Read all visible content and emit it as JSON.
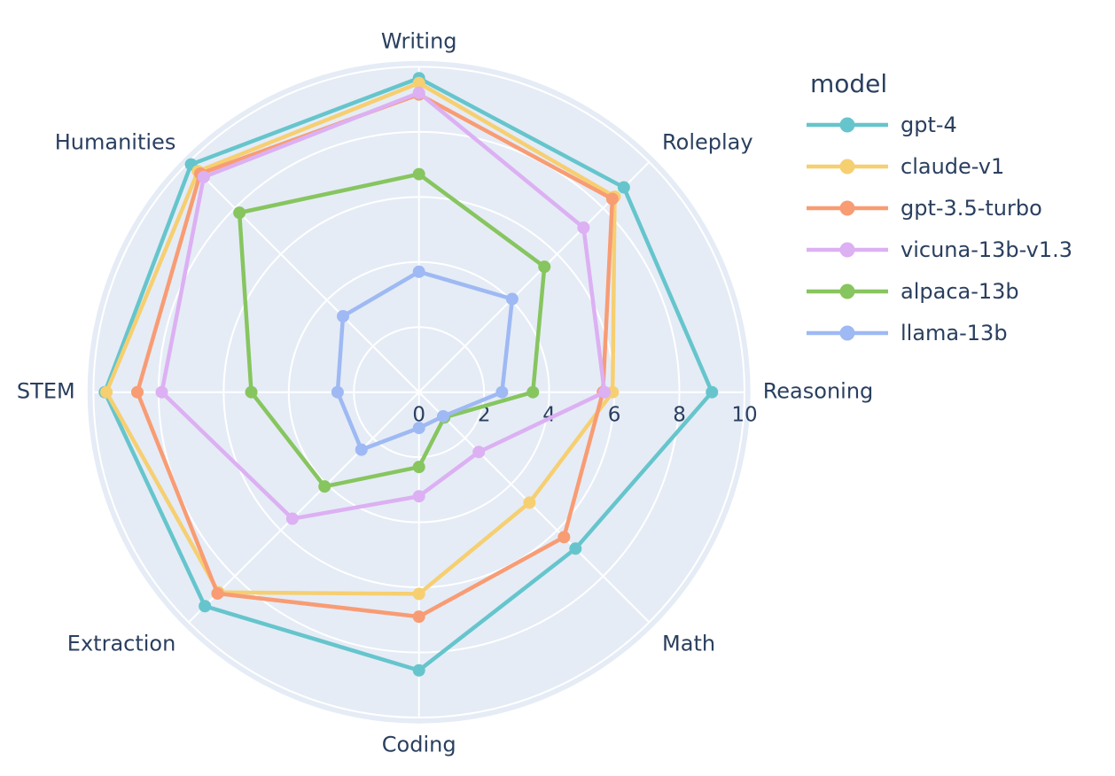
{
  "style": {
    "background": "#ffffff",
    "plot_background": "#e5ecf6",
    "grid_color": "#ffffff",
    "text_color": "#2a3f5f"
  },
  "legend": {
    "title": "model"
  },
  "chart_data": {
    "type": "radar",
    "title": "",
    "legend_title": "model",
    "legend_position": "right",
    "grid": true,
    "categories": [
      "Writing",
      "Roleplay",
      "Reasoning",
      "Math",
      "Coding",
      "Extraction",
      "STEM",
      "Humanities"
    ],
    "radial_axis": {
      "range": [
        0,
        10
      ],
      "ticks": [
        0,
        2,
        4,
        6,
        8,
        10
      ],
      "tick_labels": [
        "0",
        "2",
        "4",
        "6",
        "8",
        "10"
      ]
    },
    "series": [
      {
        "name": "gpt-4",
        "color": "#66c5cc",
        "values": [
          9.65,
          8.9,
          9.0,
          6.8,
          8.55,
          9.3,
          9.65,
          9.9
        ]
      },
      {
        "name": "claude-v1",
        "color": "#f6cf71",
        "values": [
          9.5,
          8.5,
          5.95,
          4.8,
          6.2,
          8.7,
          9.6,
          9.6
        ]
      },
      {
        "name": "gpt-3.5-turbo",
        "color": "#f89c74",
        "values": [
          9.15,
          8.4,
          5.65,
          6.3,
          6.9,
          8.75,
          8.65,
          9.5
        ]
      },
      {
        "name": "vicuna-13b-v1.3",
        "color": "#dcb0f2",
        "values": [
          9.2,
          7.15,
          5.7,
          2.6,
          3.2,
          5.5,
          7.9,
          9.35
        ]
      },
      {
        "name": "alpaca-13b",
        "color": "#87c55f",
        "values": [
          6.7,
          5.45,
          3.5,
          1.1,
          2.3,
          4.1,
          5.15,
          7.8
        ]
      },
      {
        "name": "llama-13b",
        "color": "#9eb9f3",
        "values": [
          3.7,
          4.05,
          2.55,
          1.05,
          1.1,
          2.5,
          2.5,
          3.3
        ]
      }
    ]
  }
}
